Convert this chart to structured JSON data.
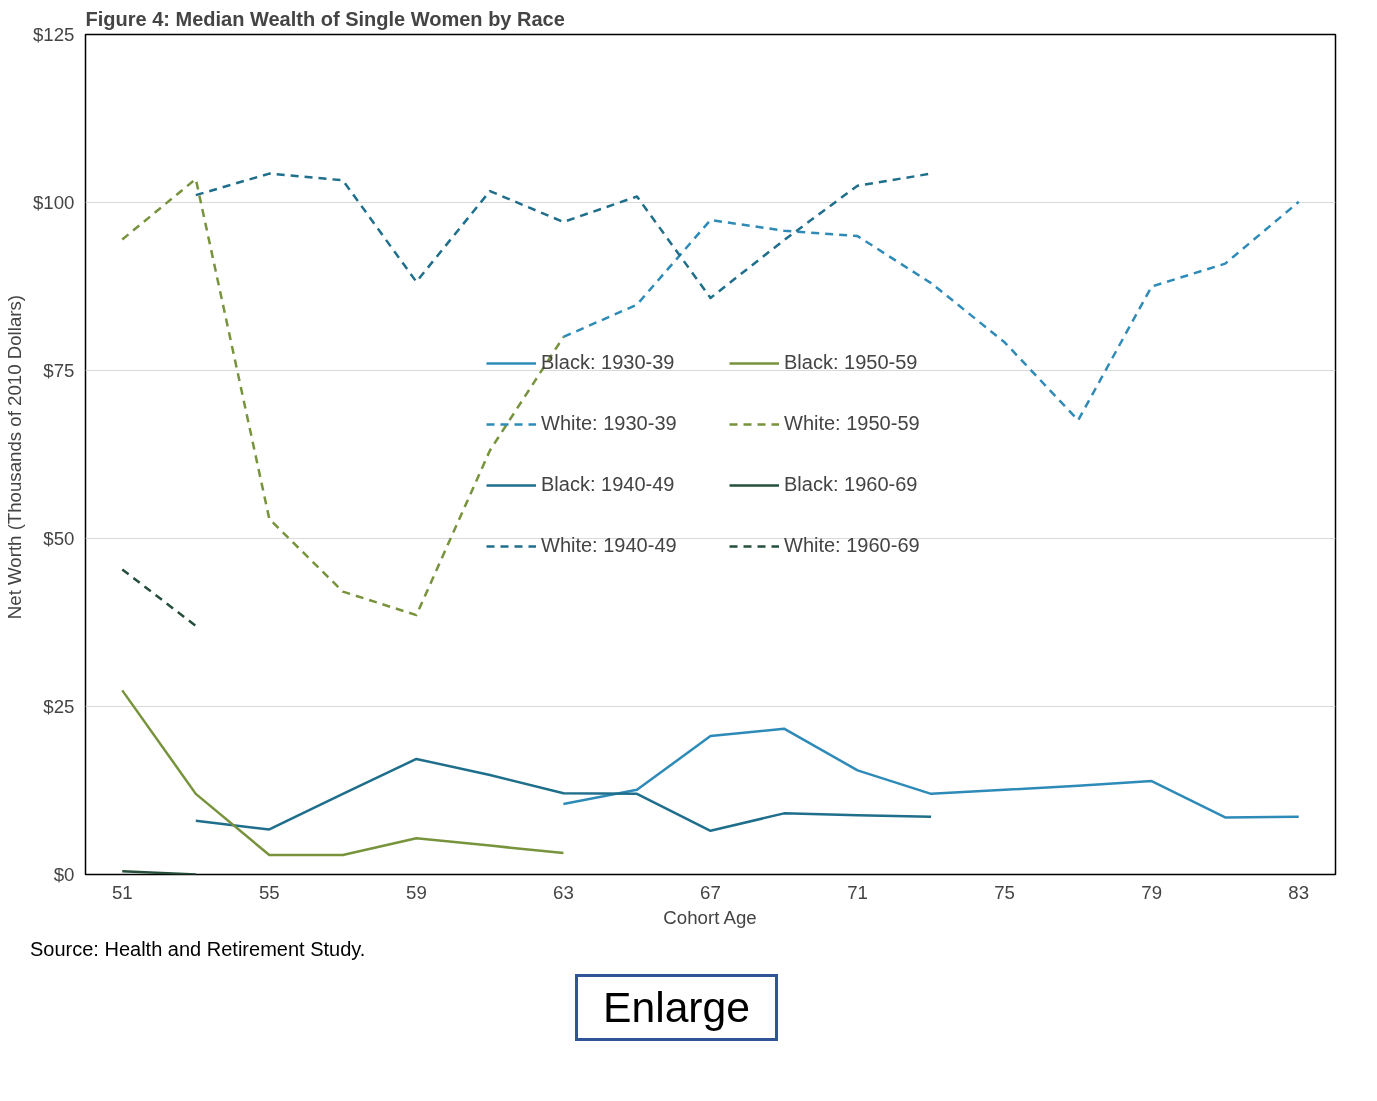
{
  "chart_data": {
    "type": "line",
    "title": "Figure 4: Median Wealth of Single Women by Race",
    "xlabel": "Cohort Age",
    "ylabel": "Net Worth  (Thousands of 2010 Dollars)",
    "xlim": [
      50,
      84
    ],
    "xticks": [
      51,
      55,
      59,
      63,
      67,
      71,
      75,
      79,
      83
    ],
    "ylim": [
      0,
      125
    ],
    "yticks": [
      {
        "value": 0,
        "label": "$0"
      },
      {
        "value": 25,
        "label": "$25"
      },
      {
        "value": 50,
        "label": "$50"
      },
      {
        "value": 75,
        "label": "$75"
      },
      {
        "value": 100,
        "label": "$100"
      },
      {
        "value": 125,
        "label": "$125"
      }
    ],
    "grid": "y",
    "legend": "center",
    "marker": "none",
    "annotations": [
      "Source: Health and Retirement Study.",
      "Enlarge"
    ],
    "series": [
      {
        "name": "Black: 1930-39",
        "color": "#2e8bb8",
        "line_style": "solid",
        "x": [
          63,
          65,
          67,
          69,
          71,
          73,
          75,
          77,
          79,
          81,
          83
        ],
        "values": [
          10.5,
          12.6,
          20.6,
          21.7,
          15.5,
          12,
          12.6,
          13.2,
          13.9,
          8.5,
          8.6
        ]
      },
      {
        "name": "White: 1930-39",
        "color": "#2e8bb8",
        "line_style": "dashed",
        "x": [
          63,
          65,
          67,
          69,
          71,
          73,
          75,
          77,
          79,
          81,
          83
        ],
        "values": [
          80,
          84.8,
          97.4,
          95.8,
          95,
          88,
          79.2,
          67.6,
          87.5,
          90.9,
          100.1
        ]
      },
      {
        "name": "Black: 1940-49",
        "color": "#1f6e8c",
        "line_style": "solid",
        "x": [
          53,
          55,
          57,
          59,
          61,
          63,
          65,
          67,
          69,
          71,
          73
        ],
        "values": [
          8,
          6.7,
          12,
          17.2,
          14.8,
          12.1,
          12,
          6.5,
          9.1,
          8.8,
          8.6
        ]
      },
      {
        "name": "White: 1940-49",
        "color": "#1f6e8c",
        "line_style": "dashed",
        "x": [
          53,
          55,
          57,
          59,
          61,
          63,
          65,
          67,
          69,
          71,
          73
        ],
        "values": [
          101.1,
          104.3,
          103.3,
          88.2,
          101.7,
          97.1,
          100.9,
          85.8,
          94.4,
          102.5,
          104.3
        ]
      },
      {
        "name": "Black: 1950-59",
        "color": "#77933c",
        "line_style": "solid",
        "x": [
          51,
          53,
          55,
          57,
          59,
          61,
          63
        ],
        "values": [
          27.4,
          12,
          2.9,
          2.9,
          5.4,
          4.3,
          3.2
        ]
      },
      {
        "name": "White: 1950-59",
        "color": "#77933c",
        "line_style": "dashed",
        "x": [
          51,
          53,
          55,
          57,
          59,
          61,
          63
        ],
        "values": [
          94.5,
          103.5,
          52.9,
          42.1,
          38.6,
          63.1,
          80
        ]
      },
      {
        "name": "Black: 1960-69",
        "color": "#254f3b",
        "line_style": "solid",
        "x": [
          51,
          53
        ],
        "values": [
          0.5,
          0
        ]
      },
      {
        "name": "White: 1960-69",
        "color": "#254f3b",
        "line_style": "dashed",
        "x": [
          51,
          53
        ],
        "values": [
          45.4,
          37
        ]
      }
    ]
  }
}
